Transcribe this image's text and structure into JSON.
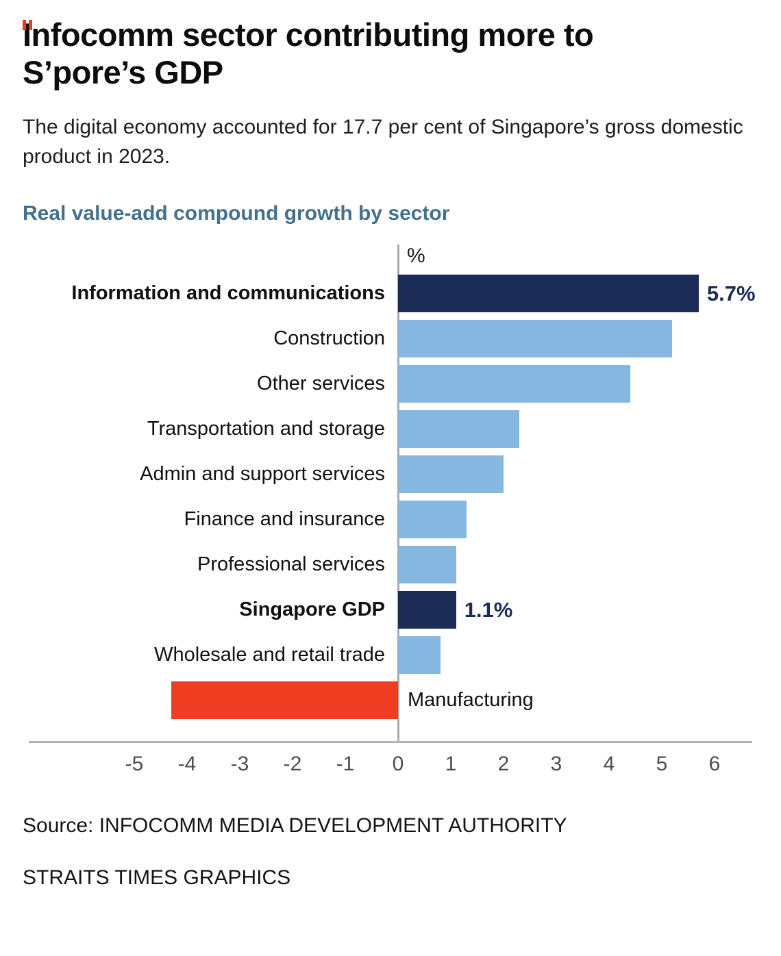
{
  "header": {
    "title": "Infocomm sector contributing more to S’pore’s GDP",
    "subtitle": "The digital economy accounted for 17.7 per cent of Singapore’s gross domestic product in 2023.",
    "chart_heading": "Real value-add compound growth by sector"
  },
  "chart_data": {
    "type": "bar",
    "orientation": "horizontal",
    "title": "Real value-add compound growth by sector",
    "axis_unit_label": "%",
    "xlim": [
      -5,
      6
    ],
    "x_ticks": [
      -5,
      -4,
      -3,
      -2,
      -1,
      0,
      1,
      2,
      3,
      4,
      5,
      6
    ],
    "grid": false,
    "colors": {
      "navy": "#1a2b55",
      "light_blue": "#85b7e1",
      "red": "#ee3d23"
    },
    "bars": [
      {
        "label": "Information and communications",
        "value": 5.7,
        "value_label": "5.7%",
        "emphasis": true,
        "color_key": "navy",
        "label_side": "left"
      },
      {
        "label": "Construction",
        "value": 5.2,
        "emphasis": false,
        "color_key": "light_blue",
        "label_side": "left"
      },
      {
        "label": "Other services",
        "value": 4.4,
        "emphasis": false,
        "color_key": "light_blue",
        "label_side": "left"
      },
      {
        "label": "Transportation and storage",
        "value": 2.3,
        "emphasis": false,
        "color_key": "light_blue",
        "label_side": "left"
      },
      {
        "label": "Admin and support services",
        "value": 2.0,
        "emphasis": false,
        "color_key": "light_blue",
        "label_side": "left"
      },
      {
        "label": "Finance and insurance",
        "value": 1.3,
        "emphasis": false,
        "color_key": "light_blue",
        "label_side": "left"
      },
      {
        "label": "Professional services",
        "value": 1.1,
        "emphasis": false,
        "color_key": "light_blue",
        "label_side": "left"
      },
      {
        "label": "Singapore GDP",
        "value": 1.1,
        "value_label": "1.1%",
        "emphasis": true,
        "color_key": "navy",
        "label_side": "left"
      },
      {
        "label": "Wholesale and retail trade",
        "value": 0.8,
        "emphasis": false,
        "color_key": "light_blue",
        "label_side": "left"
      },
      {
        "label": "Manufacturing",
        "value": -4.3,
        "emphasis": false,
        "color_key": "red",
        "label_side": "right"
      }
    ]
  },
  "footer": {
    "source": "Source: INFOCOMM MEDIA DEVELOPMENT AUTHORITY",
    "credit": "STRAITS TIMES GRAPHICS"
  }
}
